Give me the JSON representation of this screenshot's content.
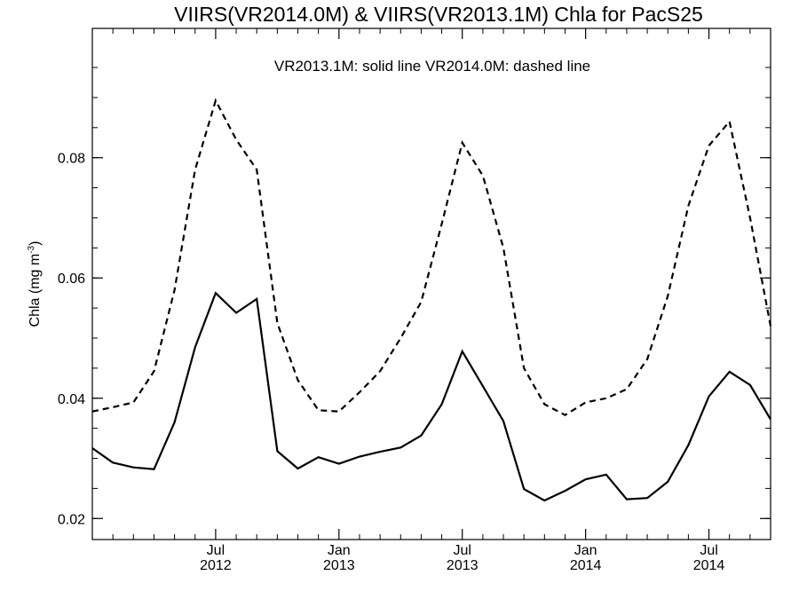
{
  "chart_data": {
    "type": "line",
    "title": "VIIRS(VR2014.0M) & VIIRS(VR2013.1M)  Chla for PacS25",
    "annotation": "VR2013.1M: solid line   VR2014.0M: dashed line",
    "ylabel_main": "Chla (mg m",
    "ylabel_sup": "-3",
    "ylabel_close": ")",
    "xlabel": "",
    "ylim": [
      0.0165,
      0.1015
    ],
    "xlim": [
      2012.0,
      2014.75
    ],
    "y_ticks": [
      {
        "value": 0.02,
        "label": "0.02"
      },
      {
        "value": 0.04,
        "label": "0.04"
      },
      {
        "value": 0.06,
        "label": "0.06"
      },
      {
        "value": 0.08,
        "label": "0.08"
      }
    ],
    "x_ticks": [
      {
        "value": 2012.5,
        "month": "Jul",
        "year": "2012"
      },
      {
        "value": 2013.0,
        "month": "Jan",
        "year": "2013"
      },
      {
        "value": 2013.5,
        "month": "Jul",
        "year": "2013"
      },
      {
        "value": 2014.0,
        "month": "Jan",
        "year": "2014"
      },
      {
        "value": 2014.5,
        "month": "Jul",
        "year": "2014"
      }
    ],
    "x": [
      2012.0,
      2012.0833,
      2012.1667,
      2012.25,
      2012.3333,
      2012.4167,
      2012.5,
      2012.5833,
      2012.6667,
      2012.75,
      2012.8333,
      2012.9167,
      2013.0,
      2013.0833,
      2013.1667,
      2013.25,
      2013.3333,
      2013.4167,
      2013.5,
      2013.5833,
      2013.6667,
      2013.75,
      2013.8333,
      2013.9167,
      2014.0,
      2014.0833,
      2014.1667,
      2014.25,
      2014.3333,
      2014.4167,
      2014.5,
      2014.5833,
      2014.6667,
      2014.75
    ],
    "series": [
      {
        "name": "VR2013.1M",
        "style": "solid",
        "values": [
          0.0317,
          0.0293,
          0.0285,
          0.0282,
          0.036,
          0.0485,
          0.0575,
          0.0542,
          0.0565,
          0.0312,
          0.0283,
          0.0302,
          0.0291,
          0.0303,
          0.0311,
          0.0318,
          0.0338,
          0.039,
          0.0478,
          0.042,
          0.0362,
          0.0249,
          0.023,
          0.0246,
          0.0265,
          0.0273,
          0.0232,
          0.0234,
          0.0261,
          0.0322,
          0.0403,
          0.0444,
          0.0422,
          0.0365
        ]
      },
      {
        "name": "VR2014.0M",
        "style": "dashed",
        "values": [
          0.0378,
          0.0385,
          0.0393,
          0.0445,
          0.058,
          0.078,
          0.0895,
          0.083,
          0.078,
          0.0525,
          0.043,
          0.038,
          0.0378,
          0.041,
          0.0445,
          0.05,
          0.056,
          0.069,
          0.0825,
          0.077,
          0.065,
          0.045,
          0.039,
          0.0372,
          0.0393,
          0.04,
          0.0415,
          0.0465,
          0.057,
          0.072,
          0.082,
          0.086,
          0.07,
          0.052
        ]
      }
    ],
    "grid": false,
    "line_color": "#000000"
  }
}
